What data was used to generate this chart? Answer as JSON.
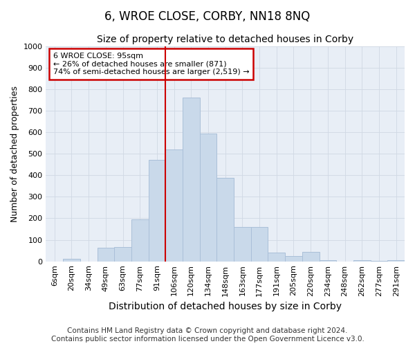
{
  "title": "6, WROE CLOSE, CORBY, NN18 8NQ",
  "subtitle": "Size of property relative to detached houses in Corby",
  "xlabel": "Distribution of detached houses by size in Corby",
  "ylabel": "Number of detached properties",
  "categories": [
    "6sqm",
    "20sqm",
    "34sqm",
    "49sqm",
    "63sqm",
    "77sqm",
    "91sqm",
    "106sqm",
    "120sqm",
    "134sqm",
    "148sqm",
    "163sqm",
    "177sqm",
    "191sqm",
    "205sqm",
    "220sqm",
    "234sqm",
    "248sqm",
    "262sqm",
    "277sqm",
    "291sqm"
  ],
  "values": [
    0,
    12,
    0,
    62,
    65,
    195,
    470,
    520,
    760,
    595,
    387,
    160,
    160,
    40,
    25,
    45,
    7,
    0,
    4,
    2,
    5
  ],
  "bar_color": "#c9d9ea",
  "bar_edge_color": "#aabfd8",
  "grid_color": "#d0d8e4",
  "bg_color": "#e8eef6",
  "vline_x_idx": 7,
  "vline_color": "#cc0000",
  "annotation_text": "6 WROE CLOSE: 95sqm\n← 26% of detached houses are smaller (871)\n74% of semi-detached houses are larger (2,519) →",
  "annotation_box_color": "#cc0000",
  "ylim": [
    0,
    1000
  ],
  "yticks": [
    0,
    100,
    200,
    300,
    400,
    500,
    600,
    700,
    800,
    900,
    1000
  ],
  "footer": "Contains HM Land Registry data © Crown copyright and database right 2024.\nContains public sector information licensed under the Open Government Licence v3.0.",
  "title_fontsize": 12,
  "subtitle_fontsize": 10,
  "xlabel_fontsize": 10,
  "ylabel_fontsize": 9,
  "tick_fontsize": 8,
  "footer_fontsize": 7.5
}
